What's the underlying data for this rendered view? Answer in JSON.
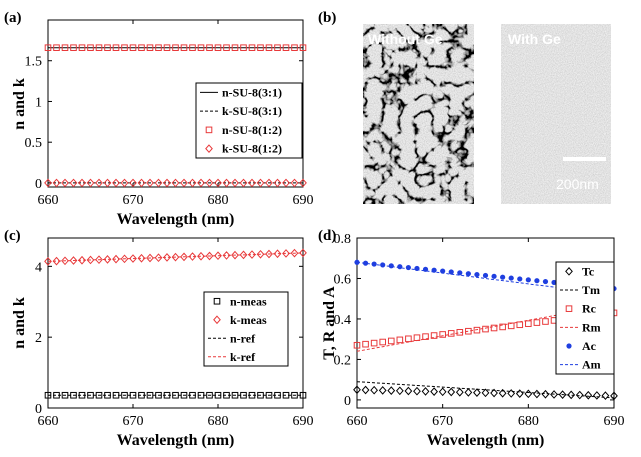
{
  "colors": {
    "black": "#000000",
    "red": "#e8393a",
    "blue": "#1f3fe0"
  },
  "panels": {
    "a": {
      "letter": "(a)"
    },
    "b": {
      "letter": "(b)",
      "left_label": "Without  Ge",
      "right_label": "With Ge",
      "scale_bar_label": "200nm"
    },
    "c": {
      "letter": "(c)"
    },
    "d": {
      "letter": "(d)"
    }
  },
  "chart_data": [
    {
      "id": "a",
      "type": "line",
      "xlabel": "Wavelength (nm)",
      "ylabel": "n and k",
      "xlim": [
        660,
        690
      ],
      "ylim": [
        -0.05,
        2.0
      ],
      "xticks": [
        660,
        670,
        680,
        690
      ],
      "yticks": [
        0,
        0.5,
        1,
        1.5
      ],
      "ytick_labels": [
        "0",
        "0.5",
        "1",
        "1.5"
      ],
      "legend_position": "right",
      "x": [
        660,
        661,
        662,
        663,
        664,
        665,
        666,
        667,
        668,
        669,
        670,
        671,
        672,
        673,
        674,
        675,
        676,
        677,
        678,
        679,
        680,
        681,
        682,
        683,
        684,
        685,
        686,
        687,
        688,
        689,
        690
      ],
      "series": [
        {
          "name": "n-SU-8(3:1)",
          "style": "solid",
          "color": "black",
          "const": 1.66
        },
        {
          "name": "k-SU-8(3:1)",
          "style": "dashed",
          "color": "black",
          "const": 0.0
        },
        {
          "name": "n-SU-8(1:2)",
          "style": "square",
          "color": "red",
          "const": 1.66
        },
        {
          "name": "k-SU-8(1:2)",
          "style": "diamond",
          "color": "red",
          "const": 0.0
        }
      ]
    },
    {
      "id": "c",
      "type": "line",
      "xlabel": "Wavelength (nm)",
      "ylabel": "n and k",
      "xlim": [
        660,
        690
      ],
      "ylim": [
        0,
        4.8
      ],
      "xticks": [
        660,
        670,
        680,
        690
      ],
      "yticks": [
        0,
        2,
        4
      ],
      "ytick_labels": [
        "0",
        "2",
        "4"
      ],
      "legend_position": "bottom-right",
      "x": [
        660,
        661,
        662,
        663,
        664,
        665,
        666,
        667,
        668,
        669,
        670,
        671,
        672,
        673,
        674,
        675,
        676,
        677,
        678,
        679,
        680,
        681,
        682,
        683,
        684,
        685,
        686,
        687,
        688,
        689,
        690
      ],
      "series": [
        {
          "name": "n-meas",
          "style": "square",
          "color": "black",
          "start": 0.36,
          "end": 0.36
        },
        {
          "name": "k-meas",
          "style": "diamond",
          "color": "red",
          "start": 4.14,
          "end": 4.38
        },
        {
          "name": "n-ref",
          "style": "dashed",
          "color": "black",
          "start": 0.36,
          "end": 0.36
        },
        {
          "name": "k-ref",
          "style": "dashed",
          "color": "red",
          "start": 4.14,
          "end": 4.38
        }
      ]
    },
    {
      "id": "d",
      "type": "line",
      "xlabel": "Wavelength (nm)",
      "ylabel": "T, R and A",
      "xlim": [
        660,
        690
      ],
      "ylim": [
        -0.04,
        0.8
      ],
      "xticks": [
        660,
        670,
        680,
        690
      ],
      "yticks": [
        0,
        0.2,
        0.4,
        0.6,
        0.8
      ],
      "ytick_labels": [
        "0",
        "0.2",
        "0.4",
        "0.6",
        "0.8"
      ],
      "legend_position": "right",
      "x": [
        660,
        661,
        662,
        663,
        664,
        665,
        666,
        667,
        668,
        669,
        670,
        671,
        672,
        673,
        674,
        675,
        676,
        677,
        678,
        679,
        680,
        681,
        682,
        683,
        684,
        685,
        686,
        687,
        688,
        689,
        690
      ],
      "series": [
        {
          "name": "Tc",
          "style": "diamond",
          "color": "black",
          "start": 0.05,
          "end": 0.02
        },
        {
          "name": "Tm",
          "style": "dashed",
          "color": "black",
          "start": 0.09,
          "end": 0.01
        },
        {
          "name": "Rc",
          "style": "square",
          "color": "red",
          "start": 0.27,
          "end": 0.43
        },
        {
          "name": "Rm",
          "style": "dashed",
          "color": "red",
          "start": 0.24,
          "end": 0.47
        },
        {
          "name": "Ac",
          "style": "dot",
          "color": "blue",
          "start": 0.68,
          "end": 0.55
        },
        {
          "name": "Am",
          "style": "dashed",
          "color": "blue",
          "start": 0.68,
          "end": 0.52
        }
      ]
    }
  ]
}
